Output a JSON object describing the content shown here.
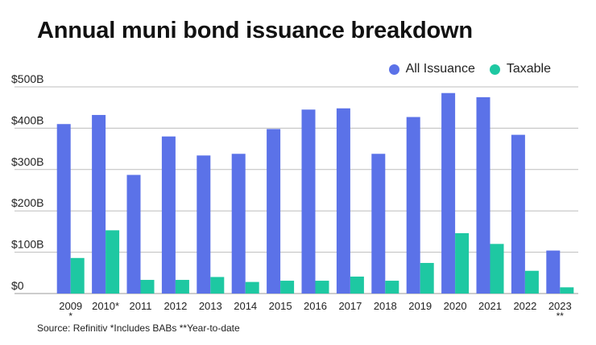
{
  "title": "Annual muni bond issuance breakdown",
  "source": "Source: Refinitiv *Includes BABs **Year-to-date",
  "colors": {
    "all": "#5b72e8",
    "taxable": "#1ec8a2",
    "grid": "#bdbdbd"
  },
  "chart_data": {
    "type": "bar",
    "title": "Annual muni bond issuance breakdown",
    "xlabel": "",
    "ylabel": "",
    "ylim": [
      0,
      500
    ],
    "yticks": [
      0,
      100,
      200,
      300,
      400,
      500
    ],
    "ytick_labels": [
      "$0",
      "$100B",
      "$200B",
      "$300B",
      "$400B",
      "$500B"
    ],
    "grid": true,
    "legend": "top-right",
    "categories": [
      "2009",
      "2010*",
      "2011",
      "2012",
      "2013",
      "2014",
      "2015",
      "2016",
      "2017",
      "2018",
      "2019",
      "2020",
      "2021",
      "2022",
      "2023"
    ],
    "category_sublabels": [
      "*",
      "",
      "",
      "",
      "",
      "",
      "",
      "",
      "",
      "",
      "",
      "",
      "",
      "",
      "**"
    ],
    "series": [
      {
        "name": "All Issuance",
        "values": [
          410,
          432,
          287,
          380,
          334,
          338,
          398,
          445,
          448,
          338,
          427,
          485,
          475,
          384,
          104
        ]
      },
      {
        "name": "Taxable",
        "values": [
          86,
          153,
          33,
          33,
          40,
          28,
          31,
          31,
          41,
          31,
          74,
          146,
          120,
          55,
          15
        ]
      }
    ]
  }
}
